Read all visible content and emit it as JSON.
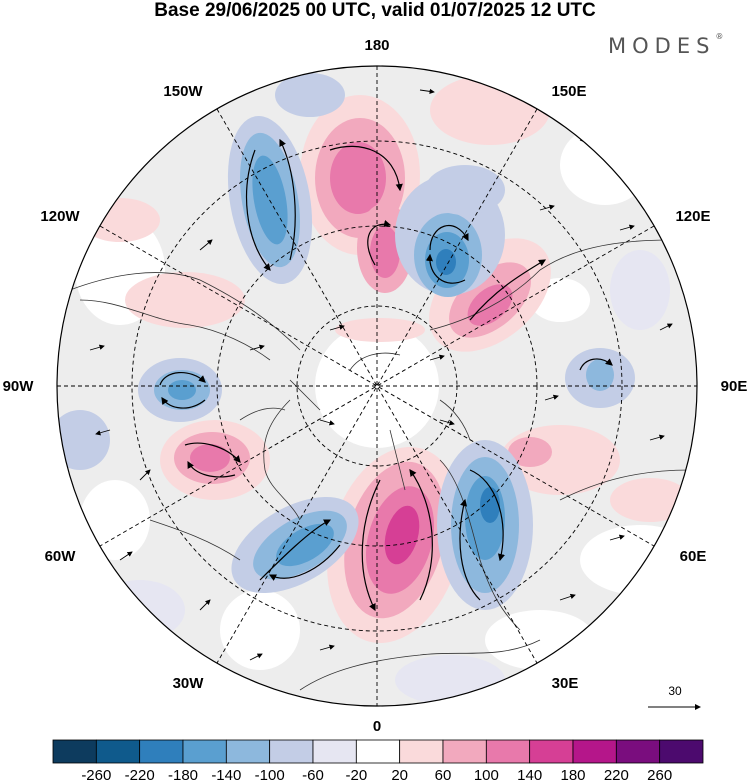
{
  "title": "Base 29/06/2025 00 UTC, valid 01/07/2025 12 UTC",
  "brand": "MODES",
  "brand_mark": "®",
  "longitude_labels": {
    "lon_180": "180",
    "lon_150w": "150W",
    "lon_150e": "150E",
    "lon_120w": "120W",
    "lon_120e": "120E",
    "lon_90w": "90W",
    "lon_90e": "90E",
    "lon_60w": "60W",
    "lon_60e": "60E",
    "lon_30w": "30W",
    "lon_30e": "30E",
    "lon_0": "0"
  },
  "reference_vector": "30",
  "colorbar": {
    "labels": [
      "-260",
      "-220",
      "-180",
      "-140",
      "-100",
      "-60",
      "-20",
      "20",
      "60",
      "100",
      "140",
      "180",
      "220",
      "260"
    ],
    "colors": [
      "#0d3b5e",
      "#0f5a8c",
      "#2f7fbc",
      "#5a9fd0",
      "#8db8dd",
      "#c3cde6",
      "#e6e6f2",
      "#ffffff",
      "#fadadb",
      "#f2a9be",
      "#e879ab",
      "#d63f95",
      "#b5168a",
      "#7a0d7e",
      "#4c0a6e"
    ]
  },
  "background_color": "#ededed"
}
